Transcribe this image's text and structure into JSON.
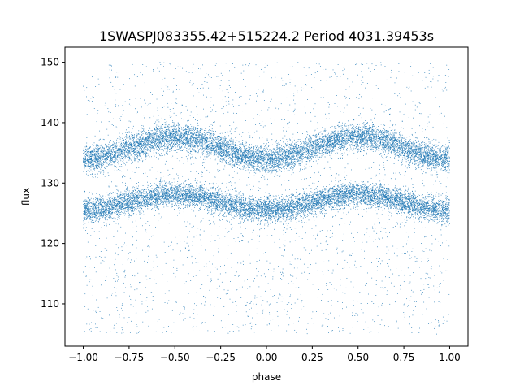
{
  "chart_data": {
    "type": "scatter",
    "title": "1SWASPJ083355.42+515224.2 Period 4031.39453s",
    "xlabel": "phase",
    "ylabel": "flux",
    "xlim": [
      -1.1,
      1.1
    ],
    "ylim": [
      103,
      152.5
    ],
    "xticks": [
      -1.0,
      -0.75,
      -0.5,
      -0.25,
      0.0,
      0.25,
      0.5,
      0.75,
      1.0
    ],
    "xtick_labels": [
      "−1.00",
      "−0.75",
      "−0.50",
      "−0.25",
      "0.00",
      "0.25",
      "0.50",
      "0.75",
      "1.00"
    ],
    "yticks": [
      110,
      120,
      130,
      140,
      150
    ],
    "ytick_labels": [
      "110",
      "120",
      "130",
      "140",
      "150"
    ],
    "grid": false,
    "point_color": "#1f77b4",
    "series": [
      {
        "description_bands": [
          {
            "mean": 126.8,
            "amplitude": 1.3,
            "spread": 1.8,
            "phase_peak": 0.5
          },
          {
            "mean": 135.8,
            "amplitude": 1.8,
            "spread": 2.0,
            "phase_peak": 0.5
          }
        ],
        "outlier_range": [
          105,
          150
        ],
        "x_range": [
          -1.0,
          1.0
        ]
      }
    ]
  }
}
